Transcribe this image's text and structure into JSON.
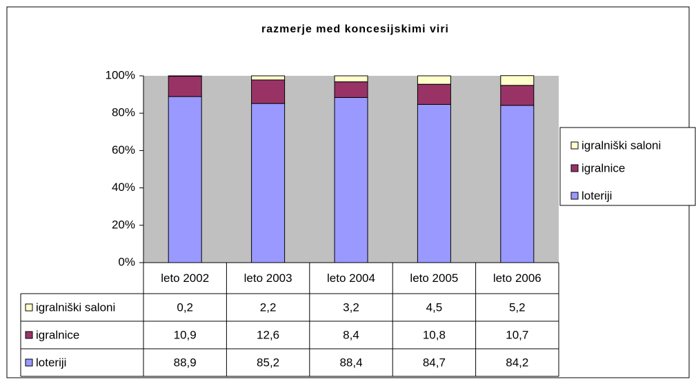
{
  "chart_data": {
    "type": "bar",
    "stacked": true,
    "title": "razmerje med koncesijskimi viri",
    "categories": [
      "leto 2002",
      "leto 2003",
      "leto 2004",
      "leto 2005",
      "leto 2006"
    ],
    "series": [
      {
        "name": "loteriji",
        "color": "#9999ff",
        "values": [
          88.9,
          85.2,
          88.4,
          84.7,
          84.2
        ],
        "value_labels": [
          "88,9",
          "85,2",
          "88,4",
          "84,7",
          "84,2"
        ]
      },
      {
        "name": "igralnice",
        "color": "#993366",
        "values": [
          10.9,
          12.6,
          8.4,
          10.8,
          10.7
        ],
        "value_labels": [
          "10,9",
          "12,6",
          "8,4",
          "10,8",
          "10,7"
        ]
      },
      {
        "name": "igralniški saloni",
        "color": "#ffffcc",
        "values": [
          0.2,
          2.2,
          3.2,
          4.5,
          5.2
        ],
        "value_labels": [
          "0,2",
          "2,2",
          "3,2",
          "4,5",
          "5,2"
        ]
      }
    ],
    "ylim": [
      0,
      100
    ],
    "yticks": [
      {
        "value": 0,
        "label": "0%"
      },
      {
        "value": 20,
        "label": "20%"
      },
      {
        "value": 40,
        "label": "40%"
      },
      {
        "value": 60,
        "label": "60%"
      },
      {
        "value": 80,
        "label": "80%"
      },
      {
        "value": 100,
        "label": "100%"
      }
    ],
    "plot_background": "#c0c0c0",
    "legend": "right",
    "data_table": true
  }
}
